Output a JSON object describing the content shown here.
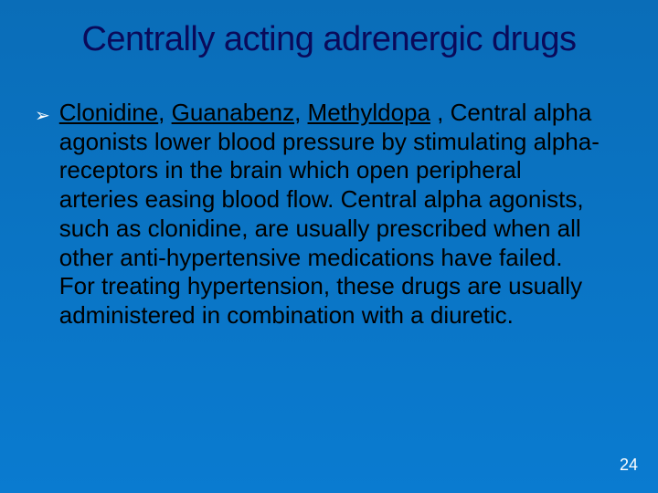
{
  "background": {
    "top_color": "#0a6db8",
    "bottom_color": "#0a7bd0"
  },
  "title": {
    "text": "Centrally acting adrenergic drugs",
    "color": "#0a0a5a",
    "fontsize": 38
  },
  "bullet": {
    "glyph": "➢",
    "color": "#ffffff",
    "fontsize": 20
  },
  "body": {
    "color": "#000000",
    "fontsize": 26,
    "drugs": [
      "Clonidine",
      "Guanabenz",
      "Methyldopa"
    ],
    "sep1": ",  ",
    "sep2": ", ",
    "after_drugs": " , ",
    "rest": "Central alpha agonists lower blood pressure by stimulating alpha-receptors in the brain which open peripheral arteries easing blood flow. Central alpha agonists, such as clonidine, are usually prescribed when all other anti-hypertensive medications have failed. For treating hypertension, these drugs are usually administered in combination with a diuretic."
  },
  "pagenum": {
    "text": "24",
    "color": "#ffffff"
  }
}
